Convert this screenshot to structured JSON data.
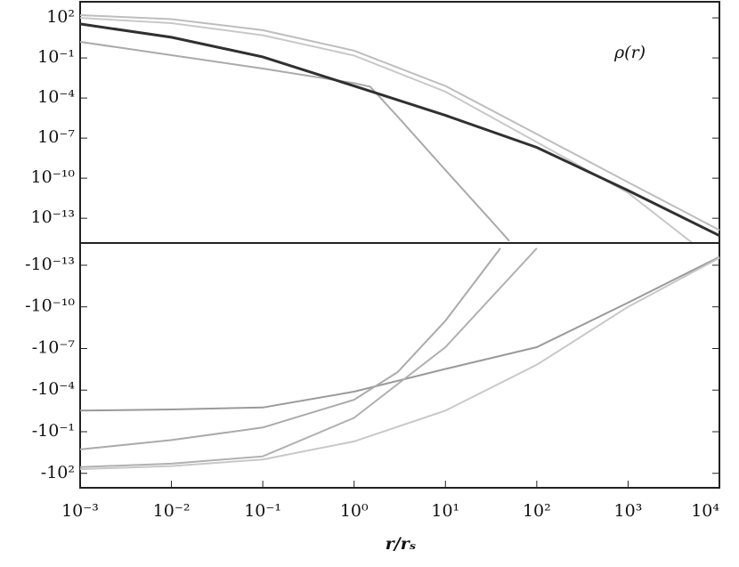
{
  "chart_data": [
    {
      "type": "line",
      "log_x": true,
      "log_y": true,
      "annotation": "ρ(r)",
      "xlim": [
        0.001,
        10000
      ],
      "ylim": [
        1.4e-15,
        1600
      ],
      "yticks": [
        {
          "value": 100,
          "label": "10²"
        },
        {
          "value": 0.1,
          "label": "10⁻¹"
        },
        {
          "value": 0.0001,
          "label": "10⁻⁴"
        },
        {
          "value": 1e-07,
          "label": "10⁻⁷"
        },
        {
          "value": 1e-10,
          "label": "10⁻¹⁰"
        },
        {
          "value": 1e-13,
          "label": "10⁻¹³"
        }
      ],
      "series": [
        {
          "color": "#bdbdbd",
          "x": [
            0.001,
            0.01,
            0.1,
            1,
            10,
            100,
            1000,
            10000
          ],
          "values": [
            160,
            80,
            12,
            0.35,
            0.0008,
            2e-07,
            5e-11,
            1.3e-14
          ]
        },
        {
          "color": "#c8c8c8",
          "x": [
            0.001,
            0.01,
            0.1,
            1,
            10,
            100,
            1000,
            5000
          ],
          "values": [
            100,
            40,
            5,
            0.15,
            0.0003,
            5e-08,
            8e-12,
            1.5e-15
          ]
        },
        {
          "color": "#aaaaaa",
          "x": [
            0.001,
            0.01,
            0.1,
            1,
            1.5,
            3,
            10,
            30,
            50
          ],
          "values": [
            1.6,
            0.16,
            0.016,
            0.0013,
            0.0007,
            4e-06,
            4e-10,
            1e-13,
            2e-15
          ]
        },
        {
          "color": "#303030",
          "x": [
            0.001,
            0.01,
            0.1,
            1,
            10,
            100,
            1000,
            10000
          ],
          "values": [
            35,
            3.5,
            0.12,
            0.0008,
            5e-06,
            2e-08,
            1.2e-11,
            5e-15
          ]
        }
      ]
    },
    {
      "type": "line",
      "log_x": true,
      "log_y": true,
      "x_label": "r/rₛ",
      "xlim": [
        0.001,
        10000
      ],
      "ylim": [
        -1100,
        -2.5e-15
      ],
      "xticks": [
        {
          "value": 0.001,
          "label": "10⁻³"
        },
        {
          "value": 0.01,
          "label": "10⁻²"
        },
        {
          "value": 0.1,
          "label": "10⁻¹"
        },
        {
          "value": 1,
          "label": "10⁰"
        },
        {
          "value": 10,
          "label": "10¹"
        },
        {
          "value": 100,
          "label": "10²"
        },
        {
          "value": 1000,
          "label": "10³"
        },
        {
          "value": 10000,
          "label": "10⁴"
        }
      ],
      "yticks": [
        {
          "value": -1e-13,
          "label": "-10⁻¹³"
        },
        {
          "value": -1e-10,
          "label": "-10⁻¹⁰"
        },
        {
          "value": -1e-07,
          "label": "-10⁻⁷"
        },
        {
          "value": -0.0001,
          "label": "-10⁻⁴"
        },
        {
          "value": -0.1,
          "label": "-10⁻¹"
        },
        {
          "value": -100,
          "label": "-10²"
        }
      ],
      "series": [
        {
          "color": "#9a9a9a",
          "x": [
            0.001,
            0.01,
            0.1,
            1,
            10,
            100,
            1000,
            10000
          ],
          "values": [
            -0.003,
            -0.0025,
            -0.0018,
            -0.00013,
            -3e-06,
            -8e-08,
            -5e-11,
            -2.5e-14
          ]
        },
        {
          "color": "#aaaaaa",
          "x": [
            0.001,
            0.01,
            0.1,
            1,
            3,
            10,
            40
          ],
          "values": [
            -1.9,
            -0.4,
            -0.05,
            -0.0005,
            -5e-06,
            -1e-09,
            -6e-15
          ]
        },
        {
          "color": "#b0b0b0",
          "x": [
            0.001,
            0.01,
            0.1,
            1,
            10,
            100
          ],
          "values": [
            -35,
            -20,
            -6,
            -0.01,
            -8e-08,
            -6e-15
          ]
        },
        {
          "color": "#c8c8c8",
          "x": [
            0.001,
            0.01,
            0.1,
            1,
            10,
            100,
            1000,
            10000
          ],
          "values": [
            -50,
            -30,
            -10,
            -0.5,
            -0.003,
            -1.5e-06,
            -1e-10,
            -3e-14
          ]
        }
      ]
    }
  ]
}
